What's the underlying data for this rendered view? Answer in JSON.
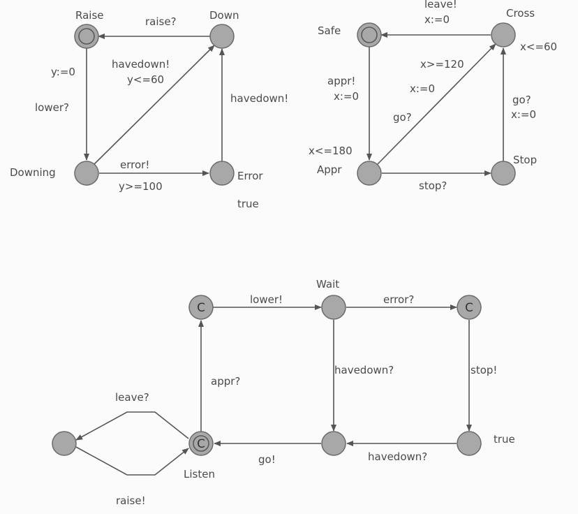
{
  "gate": {
    "states": {
      "raise": "Raise",
      "down": "Down",
      "downing": "Downing",
      "error": "Error"
    },
    "edges": {
      "raise_q": "raise?",
      "y_reset": "y:=0",
      "lower_q": "lower?",
      "havedown_guard_send": "havedown!",
      "y_le_60": "y<=60",
      "havedown_send": "havedown!",
      "error_send": "error!",
      "y_ge_100": "y>=100"
    },
    "invariants": {
      "error_true": "true"
    }
  },
  "train": {
    "states": {
      "safe": "Safe",
      "cross": "Cross",
      "appr": "Appr",
      "stop": "Stop"
    },
    "edges": {
      "leave_send": "leave!",
      "x_reset_top": "x:=0",
      "appr_send": "appr!",
      "x_reset_left": "x:=0",
      "x_ge_120": "x>=120",
      "x_reset_diag": "x:=0",
      "go_q": "go?",
      "go_q_right": "go?",
      "x_reset_right": "x:=0",
      "stop_q": "stop?"
    },
    "invariants": {
      "x_le_60": "x<=60",
      "x_le_180": "x<=180"
    }
  },
  "controller": {
    "states": {
      "wait": "Wait",
      "listen": "Listen"
    },
    "committed_marker": "C",
    "edges": {
      "lower_send": "lower!",
      "error_q": "error?",
      "appr_q": "appr?",
      "havedown_q_vert": "havedown?",
      "stop_send": "stop!",
      "leave_q": "leave?",
      "raise_send": "raise!",
      "go_send": "go!",
      "havedown_q_bottom": "havedown?"
    },
    "invariants": {
      "true_label": "true"
    }
  },
  "colors": {
    "state_fill": "#a8a8a8",
    "edge": "#555555",
    "text": "#4a4a4a"
  }
}
